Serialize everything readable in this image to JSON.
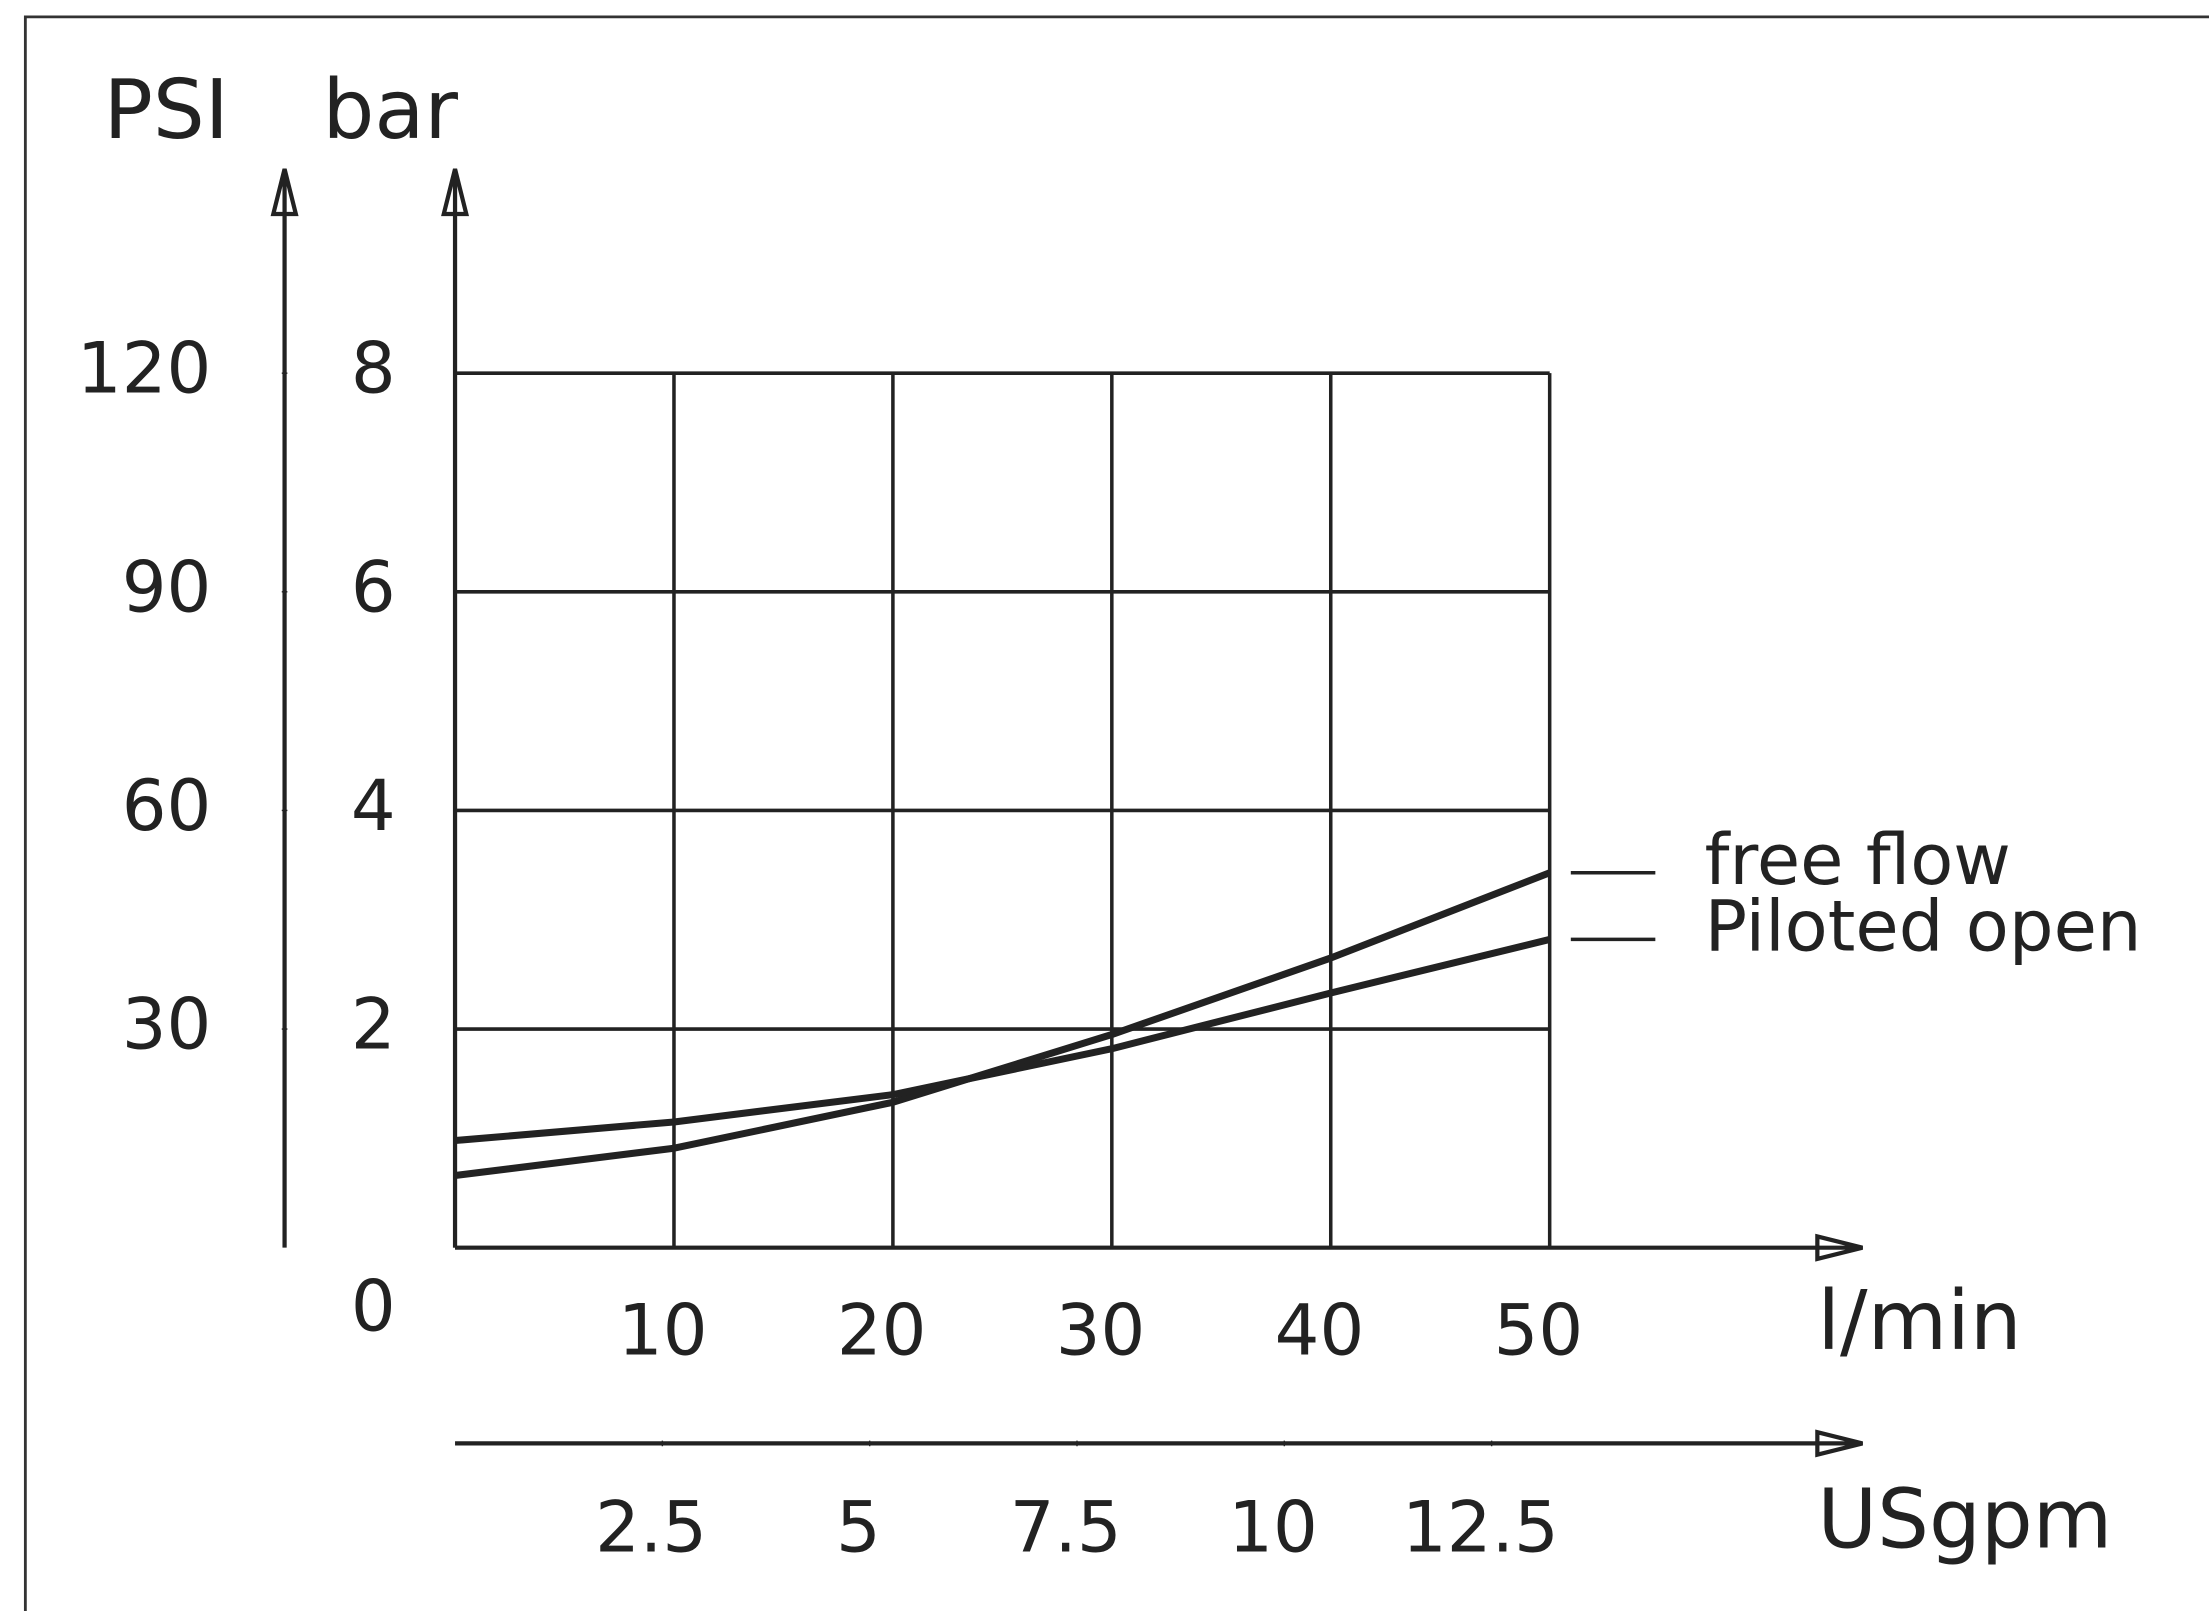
{
  "chart_data": {
    "type": "line",
    "x": [
      0,
      10,
      20,
      30,
      40,
      50
    ],
    "series": [
      {
        "name": "free flow",
        "color": "#222222",
        "values": [
          0.66,
          0.91,
          1.33,
          1.95,
          2.65,
          3.43
        ]
      },
      {
        "name": "Piloted open",
        "color": "#222222",
        "values": [
          0.98,
          1.15,
          1.4,
          1.82,
          2.33,
          2.82
        ]
      }
    ],
    "xlabel": "l/min",
    "xlim": [
      0,
      50
    ],
    "xticks": [
      10,
      20,
      30,
      40,
      50
    ],
    "x2label": "USgpm",
    "x2lim": [
      0,
      13.2
    ],
    "x2ticks": [
      2.5,
      5,
      7.5,
      10,
      12.5
    ],
    "ylabel": "bar",
    "ylim": [
      0,
      8
    ],
    "yticks": [
      0,
      2,
      4,
      6,
      8
    ],
    "y2label": "PSI",
    "y2lim": [
      0,
      120
    ],
    "y2ticks": [
      30,
      60,
      90,
      120
    ],
    "grid": true
  }
}
